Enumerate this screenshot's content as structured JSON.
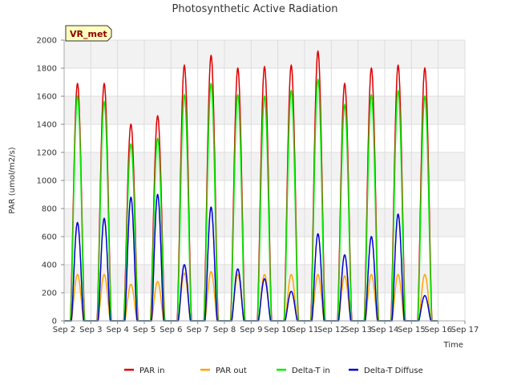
{
  "chart_data": {
    "type": "line",
    "title": "Photosynthetic Active Radiation",
    "xlabel": "Time",
    "ylabel": "PAR (umol/m2/s)",
    "ylim": [
      0,
      2000
    ],
    "yticks": [
      0,
      200,
      400,
      600,
      800,
      1000,
      1200,
      1400,
      1600,
      1800,
      2000
    ],
    "xlim": [
      2,
      17
    ],
    "xticks": [
      {
        "v": 2,
        "label": "Sep 2"
      },
      {
        "v": 3,
        "label": "Sep 3"
      },
      {
        "v": 4,
        "label": "Sep 4"
      },
      {
        "v": 5,
        "label": "Sep 5"
      },
      {
        "v": 6,
        "label": "Sep 6"
      },
      {
        "v": 7,
        "label": "Sep 7"
      },
      {
        "v": 8,
        "label": "Sep 8"
      },
      {
        "v": 9,
        "label": "Sep 9"
      },
      {
        "v": 10,
        "label": "Sep 10"
      },
      {
        "v": 11,
        "label": "Sep 11"
      },
      {
        "v": 12,
        "label": "Sep 12"
      },
      {
        "v": 13,
        "label": "Sep 13"
      },
      {
        "v": 14,
        "label": "Sep 14"
      },
      {
        "v": 15,
        "label": "Sep 15"
      },
      {
        "v": 16,
        "label": "Sep 16"
      },
      {
        "v": 17,
        "label": "Sep 17"
      }
    ],
    "site_label": "VR_met",
    "grid": true,
    "legend_position": "bottom",
    "days": [
      2.5,
      3.5,
      4.5,
      5.5,
      6.5,
      7.5,
      8.5,
      9.5,
      10.5,
      11.5,
      12.5,
      13.5,
      14.5,
      15.5
    ],
    "series": [
      {
        "name": "PAR in",
        "color": "#dd0000",
        "peaks": [
          1690,
          1690,
          1400,
          1460,
          1820,
          1890,
          1800,
          1810,
          1820,
          1920,
          1690,
          1800,
          1820,
          1800
        ]
      },
      {
        "name": "PAR out",
        "color": "#ffa500",
        "peaks": [
          330,
          330,
          260,
          280,
          340,
          350,
          330,
          330,
          330,
          330,
          320,
          330,
          330,
          330
        ]
      },
      {
        "name": "Delta-T in",
        "color": "#00ee00",
        "peaks": [
          1600,
          1560,
          1260,
          1300,
          1610,
          1690,
          1610,
          1600,
          1640,
          1720,
          1540,
          1610,
          1640,
          1600
        ]
      },
      {
        "name": "Delta-T Diffuse",
        "color": "#0000cc",
        "peaks": [
          700,
          730,
          880,
          900,
          400,
          810,
          370,
          300,
          210,
          620,
          470,
          600,
          760,
          180
        ]
      }
    ]
  }
}
